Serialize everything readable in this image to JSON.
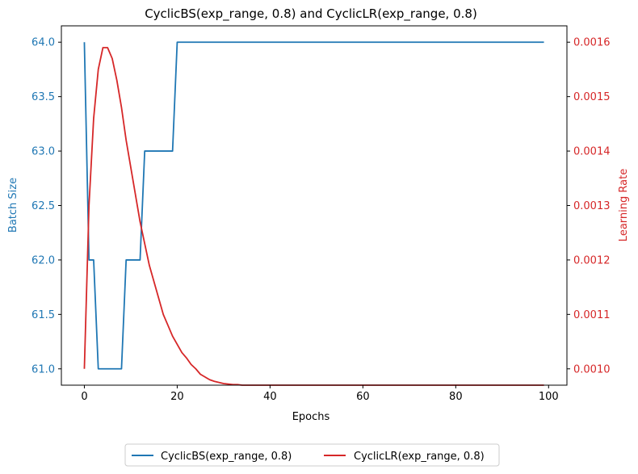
{
  "chart_data": {
    "type": "line",
    "title": "CyclicBS(exp_range, 0.8) and CyclicLR(exp_range, 0.8)",
    "xlabel": "Epochs",
    "ylabel_left": "Batch Size",
    "ylabel_right": "Learning Rate",
    "xlim": [
      -4.95,
      103.95
    ],
    "ylim_left": [
      60.85,
      64.15
    ],
    "ylim_right": [
      0.00097,
      0.00163
    ],
    "x_ticks": [
      0,
      20,
      40,
      60,
      80,
      100
    ],
    "y_left_ticks": [
      "61.0",
      "61.5",
      "62.0",
      "62.5",
      "63.0",
      "63.5",
      "64.0"
    ],
    "y_right_ticks": [
      "0.0010",
      "0.0011",
      "0.0012",
      "0.0013",
      "0.0014",
      "0.0015",
      "0.0016"
    ],
    "colors": {
      "left": "#1f77b4",
      "right": "#d62728"
    },
    "legend_position": "bottom-center",
    "series": [
      {
        "name": "CyclicBS(exp_range, 0.8)",
        "axis": "left",
        "color": "#1f77b4",
        "x": [
          0,
          1,
          2,
          3,
          4,
          5,
          6,
          7,
          8,
          9,
          10,
          11,
          12,
          13,
          14,
          15,
          16,
          17,
          18,
          19,
          20,
          21,
          22,
          23,
          24,
          25,
          26,
          27,
          28,
          29,
          30,
          31,
          32,
          33,
          34,
          35,
          36,
          37,
          38,
          39,
          40,
          41,
          42,
          43,
          44,
          45,
          46,
          47,
          48,
          49,
          50,
          51,
          52,
          53,
          54,
          55,
          56,
          57,
          58,
          59,
          60,
          61,
          62,
          63,
          64,
          65,
          66,
          67,
          68,
          69,
          70,
          71,
          72,
          73,
          74,
          75,
          76,
          77,
          78,
          79,
          80,
          81,
          82,
          83,
          84,
          85,
          86,
          87,
          88,
          89,
          90,
          91,
          92,
          93,
          94,
          95,
          96,
          97,
          98,
          99
        ],
        "values": [
          64,
          62,
          62,
          61,
          61,
          61,
          61,
          61,
          61,
          62,
          62,
          62,
          62,
          63,
          63,
          63,
          63,
          63,
          63,
          63,
          64,
          64,
          64,
          64,
          64,
          64,
          64,
          64,
          64,
          64,
          64,
          64,
          64,
          64,
          64,
          64,
          64,
          64,
          64,
          64,
          64,
          64,
          64,
          64,
          64,
          64,
          64,
          64,
          64,
          64,
          64,
          64,
          64,
          64,
          64,
          64,
          64,
          64,
          64,
          64,
          64,
          64,
          64,
          64,
          64,
          64,
          64,
          64,
          64,
          64,
          64,
          64,
          64,
          64,
          64,
          64,
          64,
          64,
          64,
          64,
          64,
          64,
          64,
          64,
          64,
          64,
          64,
          64,
          64,
          64,
          64,
          64,
          64,
          64,
          64,
          64,
          64,
          64,
          64,
          64
        ]
      },
      {
        "name": "CyclicLR(exp_range, 0.8)",
        "axis": "right",
        "color": "#d62728",
        "x": [
          0,
          1,
          2,
          3,
          4,
          5,
          6,
          7,
          8,
          9,
          10,
          11,
          12,
          13,
          14,
          15,
          16,
          17,
          18,
          19,
          20,
          21,
          22,
          23,
          24,
          25,
          26,
          27,
          28,
          29,
          30,
          31,
          32,
          33,
          34,
          35,
          36,
          37,
          38,
          39,
          40,
          41,
          42,
          43,
          44,
          45,
          46,
          47,
          48,
          49,
          50,
          51,
          52,
          53,
          54,
          55,
          56,
          57,
          58,
          59,
          60,
          61,
          62,
          63,
          64,
          65,
          66,
          67,
          68,
          69,
          70,
          71,
          72,
          73,
          74,
          75,
          76,
          77,
          78,
          79,
          80,
          81,
          82,
          83,
          84,
          85,
          86,
          87,
          88,
          89,
          90,
          91,
          92,
          93,
          94,
          95,
          96,
          97,
          98,
          99
        ],
        "values": [
          0.001,
          0.0013,
          0.00146,
          0.00155,
          0.00159,
          0.00159,
          0.00157,
          0.00153,
          0.00148,
          0.00142,
          0.00137,
          0.00132,
          0.00127,
          0.00123,
          0.00119,
          0.00116,
          0.00113,
          0.0011,
          0.00108,
          0.00106,
          0.001045,
          0.00103,
          0.00102,
          0.001008,
          0.001,
          0.00099,
          0.000985,
          0.00098,
          0.000977,
          0.000975,
          0.000973,
          0.000972,
          0.000971,
          0.000971,
          0.00097,
          0.00097,
          0.00097,
          0.00097,
          0.00097,
          0.00097,
          0.00097,
          0.00097,
          0.00097,
          0.00097,
          0.00097,
          0.00097,
          0.00097,
          0.00097,
          0.00097,
          0.00097,
          0.00097,
          0.00097,
          0.00097,
          0.00097,
          0.00097,
          0.00097,
          0.00097,
          0.00097,
          0.00097,
          0.00097,
          0.00097,
          0.00097,
          0.00097,
          0.00097,
          0.00097,
          0.00097,
          0.00097,
          0.00097,
          0.00097,
          0.00097,
          0.00097,
          0.00097,
          0.00097,
          0.00097,
          0.00097,
          0.00097,
          0.00097,
          0.00097,
          0.00097,
          0.00097,
          0.00097,
          0.00097,
          0.00097,
          0.00097,
          0.00097,
          0.00097,
          0.00097,
          0.00097,
          0.00097,
          0.00097,
          0.00097,
          0.00097,
          0.00097,
          0.00097,
          0.00097,
          0.00097,
          0.00097,
          0.00097,
          0.00097,
          0.00097
        ]
      }
    ]
  }
}
